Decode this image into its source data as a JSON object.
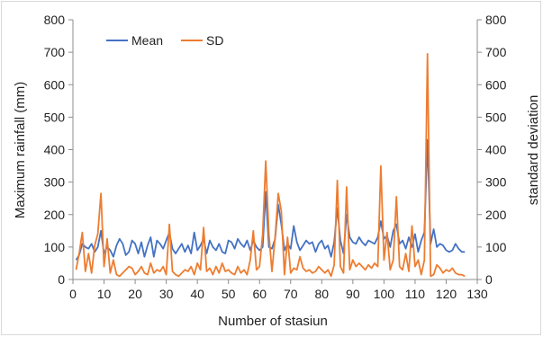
{
  "chart_data": {
    "type": "line",
    "xlabel": "Number of stasiun",
    "ylabel": "Maximum rainfall (mm)",
    "y2label": "standard deviation",
    "xlim": [
      0,
      130
    ],
    "ylim": [
      0,
      800
    ],
    "y2lim": [
      0,
      800
    ],
    "xticks": [
      0,
      10,
      20,
      30,
      40,
      50,
      60,
      70,
      80,
      90,
      100,
      110,
      120,
      130
    ],
    "yticks": [
      0,
      100,
      200,
      300,
      400,
      500,
      600,
      700,
      800
    ],
    "grid": false,
    "legend_position": "top-left",
    "series": [
      {
        "name": "Mean",
        "color": "#4472C4",
        "axis": "left",
        "points": [
          [
            1,
            60
          ],
          [
            2,
            75
          ],
          [
            3,
            110
          ],
          [
            4,
            100
          ],
          [
            5,
            95
          ],
          [
            6,
            110
          ],
          [
            7,
            85
          ],
          [
            8,
            100
          ],
          [
            9,
            150
          ],
          [
            10,
            80
          ],
          [
            11,
            100
          ],
          [
            12,
            90
          ],
          [
            13,
            70
          ],
          [
            14,
            105
          ],
          [
            15,
            125
          ],
          [
            16,
            110
          ],
          [
            17,
            75
          ],
          [
            18,
            85
          ],
          [
            19,
            120
          ],
          [
            20,
            110
          ],
          [
            21,
            80
          ],
          [
            22,
            115
          ],
          [
            23,
            70
          ],
          [
            24,
            105
          ],
          [
            25,
            130
          ],
          [
            26,
            70
          ],
          [
            27,
            120
          ],
          [
            28,
            110
          ],
          [
            29,
            95
          ],
          [
            30,
            120
          ],
          [
            31,
            145
          ],
          [
            32,
            95
          ],
          [
            33,
            80
          ],
          [
            34,
            95
          ],
          [
            35,
            110
          ],
          [
            36,
            85
          ],
          [
            37,
            105
          ],
          [
            38,
            80
          ],
          [
            39,
            145
          ],
          [
            40,
            90
          ],
          [
            41,
            105
          ],
          [
            42,
            125
          ],
          [
            43,
            80
          ],
          [
            44,
            120
          ],
          [
            45,
            100
          ],
          [
            46,
            90
          ],
          [
            47,
            110
          ],
          [
            48,
            85
          ],
          [
            49,
            80
          ],
          [
            50,
            120
          ],
          [
            51,
            115
          ],
          [
            52,
            95
          ],
          [
            53,
            125
          ],
          [
            54,
            110
          ],
          [
            55,
            100
          ],
          [
            56,
            120
          ],
          [
            57,
            90
          ],
          [
            58,
            120
          ],
          [
            59,
            100
          ],
          [
            60,
            90
          ],
          [
            61,
            100
          ],
          [
            62,
            270
          ],
          [
            63,
            100
          ],
          [
            64,
            95
          ],
          [
            65,
            125
          ],
          [
            66,
            230
          ],
          [
            67,
            170
          ],
          [
            68,
            90
          ],
          [
            69,
            110
          ],
          [
            70,
            95
          ],
          [
            71,
            165
          ],
          [
            72,
            115
          ],
          [
            73,
            90
          ],
          [
            74,
            105
          ],
          [
            75,
            120
          ],
          [
            76,
            110
          ],
          [
            77,
            115
          ],
          [
            78,
            85
          ],
          [
            79,
            110
          ],
          [
            80,
            120
          ],
          [
            81,
            95
          ],
          [
            82,
            105
          ],
          [
            83,
            70
          ],
          [
            84,
            115
          ],
          [
            85,
            220
          ],
          [
            86,
            120
          ],
          [
            87,
            80
          ],
          [
            88,
            200
          ],
          [
            89,
            130
          ],
          [
            90,
            115
          ],
          [
            91,
            110
          ],
          [
            92,
            130
          ],
          [
            93,
            115
          ],
          [
            94,
            105
          ],
          [
            95,
            120
          ],
          [
            96,
            115
          ],
          [
            97,
            110
          ],
          [
            98,
            130
          ],
          [
            99,
            180
          ],
          [
            100,
            125
          ],
          [
            101,
            135
          ],
          [
            102,
            100
          ],
          [
            103,
            150
          ],
          [
            104,
            170
          ],
          [
            105,
            110
          ],
          [
            106,
            120
          ],
          [
            107,
            95
          ],
          [
            108,
            130
          ],
          [
            109,
            100
          ],
          [
            110,
            140
          ],
          [
            111,
            85
          ],
          [
            112,
            120
          ],
          [
            113,
            145
          ],
          [
            114,
            430
          ],
          [
            115,
            110
          ],
          [
            116,
            155
          ],
          [
            117,
            100
          ],
          [
            118,
            110
          ],
          [
            119,
            105
          ],
          [
            120,
            90
          ],
          [
            121,
            85
          ],
          [
            122,
            90
          ],
          [
            123,
            110
          ],
          [
            124,
            95
          ],
          [
            125,
            85
          ],
          [
            126,
            85
          ]
        ]
      },
      {
        "name": "SD",
        "color": "#ED7D31",
        "axis": "right",
        "points": [
          [
            1,
            30
          ],
          [
            2,
            80
          ],
          [
            3,
            145
          ],
          [
            4,
            25
          ],
          [
            5,
            80
          ],
          [
            6,
            20
          ],
          [
            7,
            105
          ],
          [
            8,
            140
          ],
          [
            9,
            265
          ],
          [
            10,
            40
          ],
          [
            11,
            125
          ],
          [
            12,
            20
          ],
          [
            13,
            60
          ],
          [
            14,
            15
          ],
          [
            15,
            10
          ],
          [
            16,
            20
          ],
          [
            17,
            30
          ],
          [
            18,
            40
          ],
          [
            19,
            35
          ],
          [
            20,
            15
          ],
          [
            21,
            25
          ],
          [
            22,
            40
          ],
          [
            23,
            20
          ],
          [
            24,
            15
          ],
          [
            25,
            50
          ],
          [
            26,
            20
          ],
          [
            27,
            30
          ],
          [
            28,
            25
          ],
          [
            29,
            40
          ],
          [
            30,
            15
          ],
          [
            31,
            170
          ],
          [
            32,
            25
          ],
          [
            33,
            15
          ],
          [
            34,
            10
          ],
          [
            35,
            20
          ],
          [
            36,
            30
          ],
          [
            37,
            25
          ],
          [
            38,
            40
          ],
          [
            39,
            15
          ],
          [
            40,
            50
          ],
          [
            41,
            30
          ],
          [
            42,
            160
          ],
          [
            43,
            25
          ],
          [
            44,
            35
          ],
          [
            45,
            15
          ],
          [
            46,
            40
          ],
          [
            47,
            20
          ],
          [
            48,
            50
          ],
          [
            49,
            25
          ],
          [
            50,
            30
          ],
          [
            51,
            20
          ],
          [
            52,
            15
          ],
          [
            53,
            40
          ],
          [
            54,
            20
          ],
          [
            55,
            30
          ],
          [
            56,
            15
          ],
          [
            57,
            60
          ],
          [
            58,
            150
          ],
          [
            59,
            30
          ],
          [
            60,
            40
          ],
          [
            61,
            140
          ],
          [
            62,
            365
          ],
          [
            63,
            140
          ],
          [
            64,
            25
          ],
          [
            65,
            130
          ],
          [
            66,
            265
          ],
          [
            67,
            210
          ],
          [
            68,
            15
          ],
          [
            69,
            130
          ],
          [
            70,
            20
          ],
          [
            71,
            35
          ],
          [
            72,
            30
          ],
          [
            73,
            70
          ],
          [
            74,
            35
          ],
          [
            75,
            25
          ],
          [
            76,
            30
          ],
          [
            77,
            20
          ],
          [
            78,
            25
          ],
          [
            79,
            40
          ],
          [
            80,
            30
          ],
          [
            81,
            20
          ],
          [
            82,
            30
          ],
          [
            83,
            10
          ],
          [
            84,
            45
          ],
          [
            85,
            305
          ],
          [
            86,
            40
          ],
          [
            87,
            20
          ],
          [
            88,
            285
          ],
          [
            89,
            30
          ],
          [
            90,
            60
          ],
          [
            91,
            40
          ],
          [
            92,
            50
          ],
          [
            93,
            40
          ],
          [
            94,
            30
          ],
          [
            95,
            45
          ],
          [
            96,
            35
          ],
          [
            97,
            50
          ],
          [
            98,
            40
          ],
          [
            99,
            350
          ],
          [
            100,
            60
          ],
          [
            101,
            145
          ],
          [
            102,
            30
          ],
          [
            103,
            60
          ],
          [
            104,
            255
          ],
          [
            105,
            40
          ],
          [
            106,
            30
          ],
          [
            107,
            80
          ],
          [
            108,
            25
          ],
          [
            109,
            165
          ],
          [
            110,
            40
          ],
          [
            111,
            60
          ],
          [
            112,
            15
          ],
          [
            113,
            60
          ],
          [
            114,
            695
          ],
          [
            115,
            10
          ],
          [
            116,
            15
          ],
          [
            117,
            45
          ],
          [
            118,
            35
          ],
          [
            119,
            20
          ],
          [
            120,
            30
          ],
          [
            121,
            25
          ],
          [
            122,
            35
          ],
          [
            123,
            20
          ],
          [
            124,
            15
          ],
          [
            125,
            15
          ],
          [
            126,
            10
          ]
        ]
      }
    ]
  }
}
